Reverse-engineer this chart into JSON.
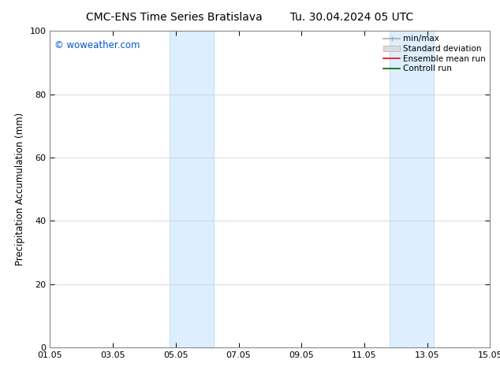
{
  "title_left": "CMC-ENS Time Series Bratislava",
  "title_right": "Tu. 30.04.2024 05 UTC",
  "ylabel": "Precipitation Accumulation (mm)",
  "watermark": "© woweather.com",
  "watermark_color": "#0055cc",
  "ylim": [
    0,
    100
  ],
  "yticks": [
    0,
    20,
    40,
    60,
    80,
    100
  ],
  "xticks_labels": [
    "01.05",
    "03.05",
    "05.05",
    "07.05",
    "09.05",
    "11.05",
    "13.05",
    "15.05"
  ],
  "xticks_positions": [
    0,
    2,
    4,
    6,
    8,
    10,
    12,
    14
  ],
  "shade_regions": [
    {
      "xmin": 3.8,
      "xmax": 5.2
    },
    {
      "xmin": 10.8,
      "xmax": 12.2
    }
  ],
  "shade_color": "#ddeeff",
  "shade_edge_color": "#c8dcef",
  "background_color": "#ffffff",
  "grid_color": "#cccccc",
  "title_fontsize": 10,
  "axis_label_fontsize": 8.5,
  "tick_fontsize": 8,
  "legend_fontsize": 7.5
}
